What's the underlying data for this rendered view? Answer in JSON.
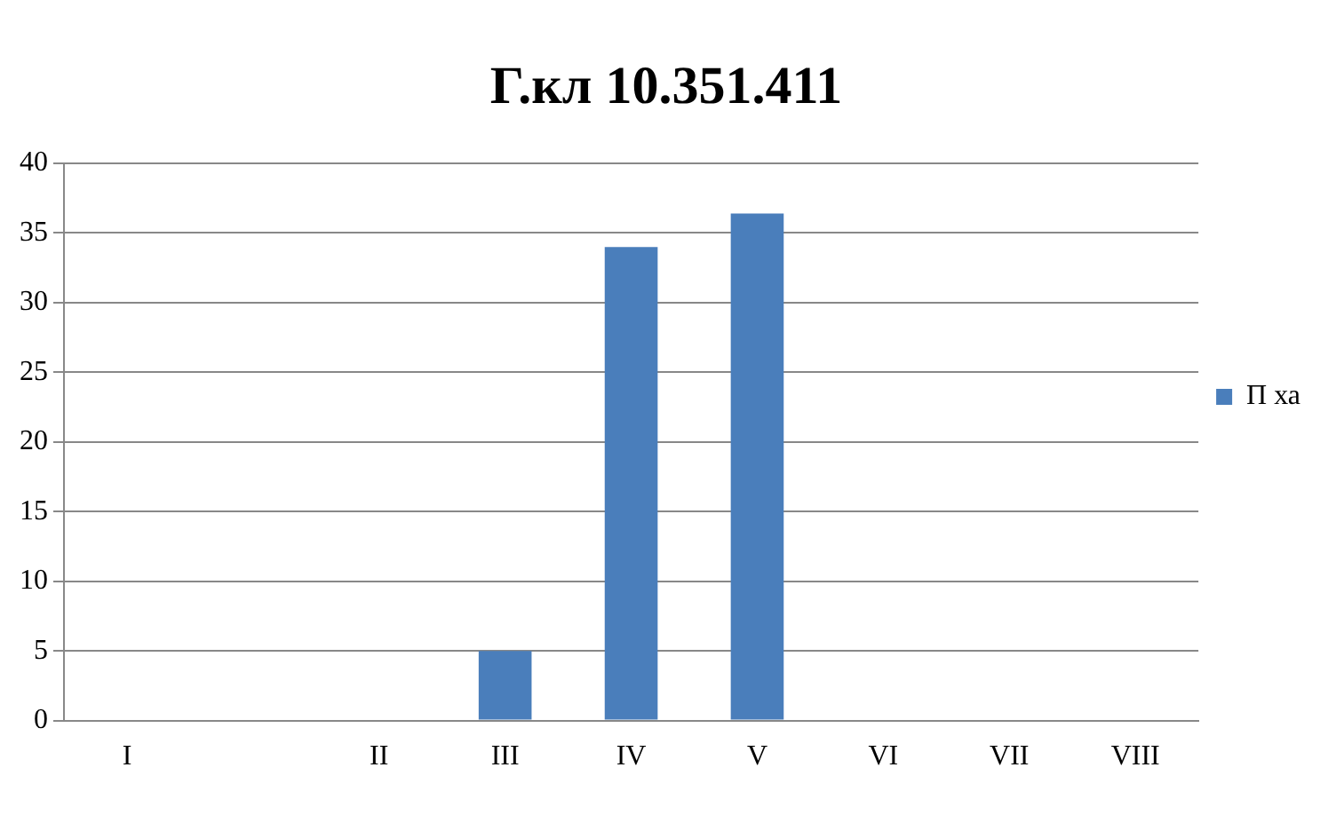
{
  "chart_data": {
    "type": "bar",
    "title": "Г.кл 10.351.411",
    "categories": [
      "I",
      null,
      "II",
      "III",
      "IV",
      "V",
      "VI",
      "VII",
      "VIII"
    ],
    "series": [
      {
        "name": "П ха",
        "color": "#4a7ebb",
        "values": [
          0,
          0,
          0,
          5,
          34,
          36.4,
          0,
          0,
          0
        ]
      }
    ],
    "ylim": [
      0,
      40
    ],
    "yticks": [
      0,
      5,
      10,
      15,
      20,
      25,
      30,
      35,
      40
    ],
    "grid": "y",
    "legend": "right"
  }
}
